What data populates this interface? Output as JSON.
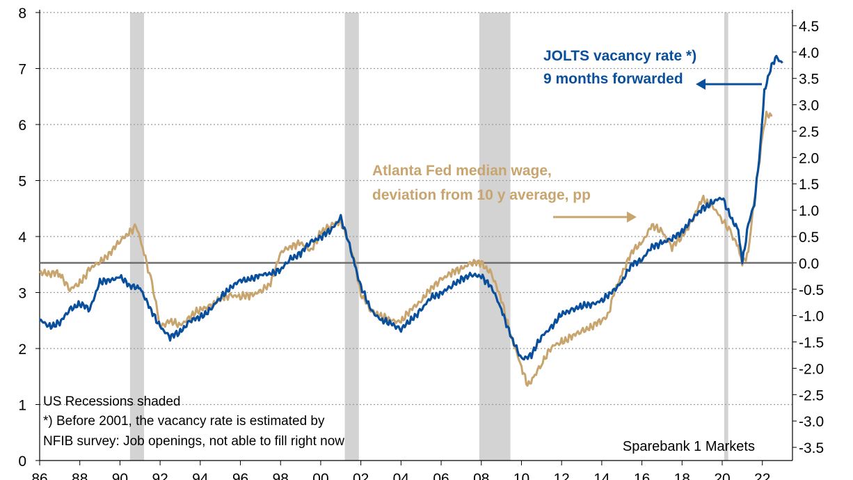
{
  "chart_data": {
    "type": "line",
    "title": "",
    "xlabel": "",
    "x_tick_labels": [
      "86",
      "88",
      "90",
      "92",
      "94",
      "96",
      "98",
      "00",
      "02",
      "04",
      "06",
      "08",
      "10",
      "12",
      "14",
      "16",
      "18",
      "20",
      "22"
    ],
    "x_tick_years": [
      1986,
      1988,
      1990,
      1992,
      1994,
      1996,
      1998,
      2000,
      2002,
      2004,
      2006,
      2008,
      2010,
      2012,
      2014,
      2016,
      2018,
      2020,
      2022
    ],
    "xlim": [
      1986.0,
      2023.5
    ],
    "y_left": {
      "lim": [
        0,
        8
      ],
      "ticks": [
        "0",
        "1",
        "2",
        "3",
        "4",
        "5",
        "6",
        "7",
        "8"
      ]
    },
    "y_right": {
      "lim": [
        -3.75,
        4.75
      ],
      "ticks": [
        "-3.5",
        "-3.0",
        "-2.5",
        "-2.0",
        "-1.5",
        "-1.0",
        "-0.5",
        "0.0",
        "0.5",
        "1.0",
        "1.5",
        "2.0",
        "2.5",
        "3.0",
        "3.5",
        "4.0",
        "4.5"
      ]
    },
    "zero_line_right": 0.0,
    "recessions": [
      [
        1990.5,
        1991.2
      ],
      [
        2001.2,
        2001.9
      ],
      [
        2007.9,
        2009.45
      ],
      [
        2020.1,
        2020.3
      ]
    ],
    "series": [
      {
        "name": "JOLTS vacancy rate *) 9 months forwarded",
        "axis": "left",
        "color": "#0a4f9c",
        "x": [
          1986.0,
          1986.5,
          1987.0,
          1987.5,
          1988.0,
          1988.5,
          1989.0,
          1989.5,
          1990.0,
          1990.5,
          1991.0,
          1991.5,
          1992.0,
          1992.5,
          1993.0,
          1993.5,
          1994.0,
          1994.5,
          1995.0,
          1995.5,
          1996.0,
          1996.5,
          1997.0,
          1997.5,
          1998.0,
          1998.5,
          1999.0,
          1999.5,
          2000.0,
          2000.5,
          2001.0,
          2001.3,
          2001.7,
          2002.0,
          2002.5,
          2003.0,
          2003.5,
          2004.0,
          2004.5,
          2005.0,
          2005.5,
          2006.0,
          2006.5,
          2007.0,
          2007.5,
          2008.0,
          2008.5,
          2009.0,
          2009.5,
          2010.0,
          2010.5,
          2011.0,
          2011.5,
          2012.0,
          2012.5,
          2013.0,
          2013.5,
          2014.0,
          2014.5,
          2015.0,
          2015.5,
          2016.0,
          2016.5,
          2017.0,
          2017.5,
          2018.0,
          2018.5,
          2019.0,
          2019.5,
          2020.0,
          2020.5,
          2020.8,
          2021.0,
          2021.3,
          2021.6,
          2021.9,
          2022.1,
          2022.4,
          2022.7,
          2023.0
        ],
        "y": [
          2.5,
          2.4,
          2.45,
          2.7,
          2.8,
          2.7,
          3.2,
          3.2,
          3.3,
          3.1,
          3.1,
          2.7,
          2.4,
          2.2,
          2.3,
          2.5,
          2.55,
          2.7,
          2.9,
          3.1,
          3.2,
          3.25,
          3.3,
          3.35,
          3.4,
          3.6,
          3.7,
          3.9,
          4.0,
          4.1,
          4.35,
          4.0,
          3.5,
          3.1,
          2.7,
          2.5,
          2.45,
          2.35,
          2.5,
          2.7,
          2.9,
          3.0,
          3.1,
          3.25,
          3.3,
          3.3,
          3.1,
          2.7,
          2.2,
          1.8,
          1.9,
          2.2,
          2.4,
          2.6,
          2.7,
          2.75,
          2.8,
          2.85,
          3.0,
          3.2,
          3.5,
          3.6,
          3.8,
          3.9,
          3.95,
          4.1,
          4.3,
          4.5,
          4.6,
          4.7,
          4.3,
          4.1,
          3.55,
          4.2,
          4.6,
          5.6,
          6.6,
          7.0,
          7.2,
          7.1
        ]
      },
      {
        "name": "Atlanta Fed median wage, deviation from 10 y average, pp",
        "axis": "right",
        "color": "#c8a46e",
        "x": [
          1986.0,
          1987.0,
          1987.5,
          1988.0,
          1988.5,
          1989.0,
          1989.5,
          1990.0,
          1990.5,
          1990.8,
          1991.2,
          1991.6,
          1992.0,
          1992.5,
          1993.0,
          1993.5,
          1994.0,
          1994.5,
          1995.0,
          1995.5,
          1996.0,
          1996.5,
          1997.0,
          1997.5,
          1998.0,
          1998.5,
          1999.0,
          1999.5,
          2000.0,
          2000.5,
          2001.0,
          2001.3,
          2001.7,
          2002.0,
          2002.5,
          2003.0,
          2003.5,
          2004.0,
          2004.5,
          2005.0,
          2005.5,
          2006.0,
          2006.5,
          2007.0,
          2007.5,
          2008.0,
          2008.5,
          2009.0,
          2009.5,
          2010.0,
          2010.3,
          2010.6,
          2011.0,
          2011.5,
          2012.0,
          2012.5,
          2013.0,
          2013.5,
          2014.0,
          2014.3,
          2014.6,
          2015.0,
          2015.5,
          2016.0,
          2016.5,
          2017.0,
          2017.5,
          2018.0,
          2018.5,
          2019.0,
          2019.5,
          2020.0,
          2020.4,
          2020.8,
          2021.0,
          2021.3,
          2021.6,
          2022.0,
          2022.2,
          2022.5
        ],
        "y": [
          -0.2,
          -0.2,
          -0.5,
          -0.4,
          -0.1,
          0.0,
          0.2,
          0.4,
          0.6,
          0.7,
          0.2,
          -0.4,
          -1.2,
          -1.1,
          -1.2,
          -1.0,
          -0.9,
          -0.8,
          -0.7,
          -0.6,
          -0.65,
          -0.6,
          -0.55,
          -0.4,
          0.2,
          0.3,
          0.4,
          0.2,
          0.6,
          0.7,
          0.8,
          0.5,
          0.0,
          -0.6,
          -0.9,
          -1.0,
          -1.1,
          -1.1,
          -0.9,
          -0.7,
          -0.5,
          -0.3,
          -0.2,
          -0.1,
          0.0,
          0.0,
          -0.2,
          -0.7,
          -1.4,
          -2.0,
          -2.3,
          -2.2,
          -1.9,
          -1.6,
          -1.5,
          -1.4,
          -1.3,
          -1.2,
          -1.1,
          -1.0,
          -0.6,
          -0.2,
          0.2,
          0.4,
          0.7,
          0.6,
          0.3,
          0.5,
          0.8,
          1.2,
          1.1,
          0.8,
          0.6,
          0.3,
          0.0,
          0.2,
          1.2,
          2.4,
          2.8,
          2.8
        ]
      }
    ]
  },
  "annotations": {
    "jolts_label": [
      "JOLTS vacancy rate *)",
      "9 months forwarded"
    ],
    "wage_label": [
      "Atlanta Fed median wage,",
      "deviation from 10 y average, pp"
    ],
    "notes": [
      "US Recessions shaded",
      "*) Before 2001, the vacancy rate is estimated by",
      "NFIB survey: Job openings, not able to fill right now"
    ],
    "source": "Sparebank 1 Markets"
  }
}
